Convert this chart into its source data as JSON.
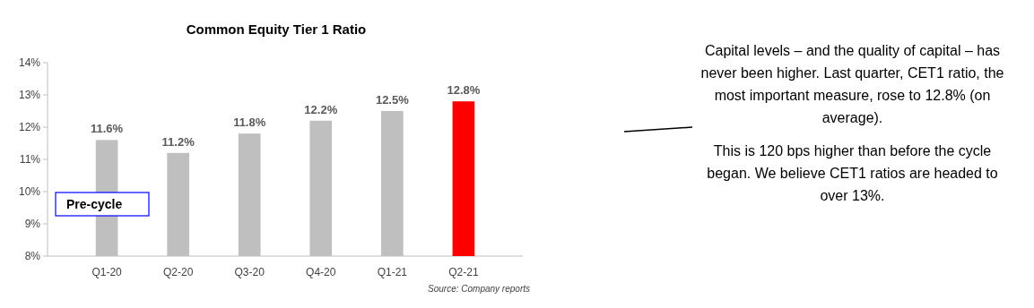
{
  "chart_data": {
    "type": "bar",
    "title": "Common Equity Tier 1 Ratio",
    "categories": [
      "Q1-20",
      "Q2-20",
      "Q3-20",
      "Q4-20",
      "Q1-21",
      "Q2-21"
    ],
    "values": [
      11.6,
      11.2,
      11.8,
      12.2,
      12.5,
      12.8
    ],
    "colors": [
      "#bfbfbf",
      "#bfbfbf",
      "#bfbfbf",
      "#bfbfbf",
      "#bfbfbf",
      "#ff0000"
    ],
    "value_labels": [
      "11.6%",
      "11.2%",
      "11.8%",
      "12.2%",
      "12.5%",
      "12.8%"
    ],
    "ylim": [
      8,
      14
    ],
    "yticks": [
      {
        "value": 8,
        "label": "8%"
      },
      {
        "value": 9,
        "label": "9%"
      },
      {
        "value": 10,
        "label": "10%"
      },
      {
        "value": 11,
        "label": "11%"
      },
      {
        "value": 12,
        "label": "12%"
      },
      {
        "value": 13,
        "label": "13%"
      },
      {
        "value": 14,
        "label": "14%"
      }
    ],
    "grid": false,
    "annotations": [
      "Pre-cycle",
      "Source: Company reports",
      "Capital levels – and the quality of capital – has never been higher. Last quarter, CET1 ratio, the most important measure, rose to 12.8% (on average).",
      "This is 120 bps higher than before the cycle began. We believe CET1 ratios are headed to over 13%."
    ]
  }
}
